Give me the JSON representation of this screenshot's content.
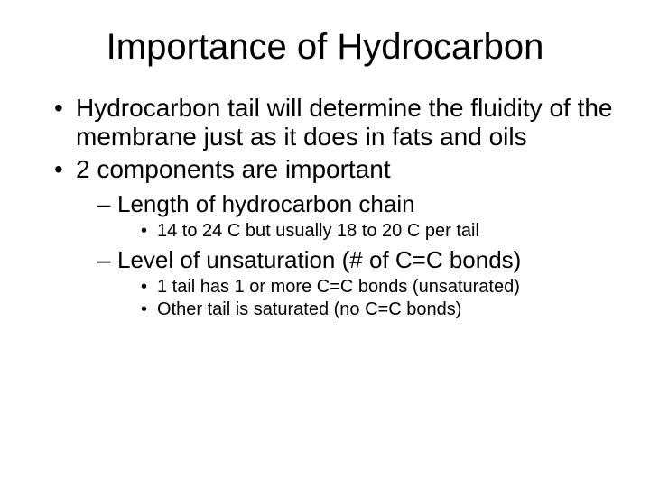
{
  "title": "Importance of Hydrocarbon",
  "bullets": {
    "b1": "Hydrocarbon tail will determine the fluidity of the membrane just as it does in fats and oils",
    "b2": "2 components are important",
    "b2_1": "Length of hydrocarbon chain",
    "b2_1_1": "14 to 24 C but usually 18 to 20 C per tail",
    "b2_2": "Level of unsaturation (# of C=C bonds)",
    "b2_2_1": "1 tail has 1 or more C=C bonds (unsaturated)",
    "b2_2_2": "Other tail is saturated (no C=C bonds)"
  },
  "style": {
    "background_color": "#ffffff",
    "text_color": "#000000",
    "font_family": "Comic Sans MS",
    "title_fontsize": 40,
    "level1_fontsize": 28,
    "level2_fontsize": 26,
    "level3_fontsize": 20,
    "slide_width": 720,
    "slide_height": 540
  }
}
